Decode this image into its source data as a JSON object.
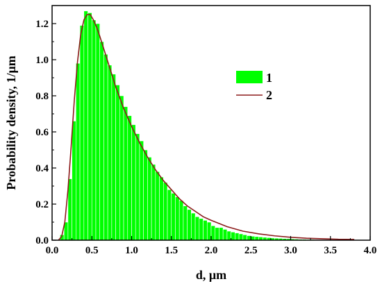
{
  "chart_data": {
    "type": "bar",
    "xlabel": "d, μm",
    "ylabel": "Probability density, 1/μm",
    "xlim": [
      0.0,
      4.0
    ],
    "ylim": [
      0.0,
      1.3
    ],
    "x_ticks": [
      "0.0",
      "0.5",
      "1.0",
      "1.5",
      "2.0",
      "2.5",
      "3.0",
      "3.5",
      "4.0"
    ],
    "y_ticks": [
      "0.0",
      "0.2",
      "0.4",
      "0.6",
      "0.8",
      "1.0",
      "1.2"
    ],
    "grid": false,
    "legend": {
      "position": "upper-right",
      "entries": [
        {
          "label": "1",
          "kind": "bar",
          "color": "#00ff00"
        },
        {
          "label": "2",
          "kind": "line",
          "color": "#8b1a1a"
        }
      ]
    },
    "series": [
      {
        "name": "1",
        "type": "bar",
        "color": "#00ff00",
        "bin_width": 0.05,
        "bins": [
          [
            0.1,
            0.03
          ],
          [
            0.15,
            0.1
          ],
          [
            0.2,
            0.34
          ],
          [
            0.25,
            0.66
          ],
          [
            0.3,
            0.98
          ],
          [
            0.35,
            1.19
          ],
          [
            0.4,
            1.27
          ],
          [
            0.45,
            1.26
          ],
          [
            0.5,
            1.22
          ],
          [
            0.55,
            1.2
          ],
          [
            0.6,
            1.1
          ],
          [
            0.65,
            1.03
          ],
          [
            0.7,
            0.97
          ],
          [
            0.75,
            0.92
          ],
          [
            0.8,
            0.86
          ],
          [
            0.85,
            0.8
          ],
          [
            0.9,
            0.74
          ],
          [
            0.95,
            0.69
          ],
          [
            1.0,
            0.64
          ],
          [
            1.05,
            0.59
          ],
          [
            1.1,
            0.55
          ],
          [
            1.15,
            0.5
          ],
          [
            1.2,
            0.46
          ],
          [
            1.25,
            0.42
          ],
          [
            1.3,
            0.38
          ],
          [
            1.35,
            0.35
          ],
          [
            1.4,
            0.32
          ],
          [
            1.45,
            0.28
          ],
          [
            1.5,
            0.26
          ],
          [
            1.55,
            0.24
          ],
          [
            1.6,
            0.22
          ],
          [
            1.65,
            0.19
          ],
          [
            1.7,
            0.17
          ],
          [
            1.75,
            0.15
          ],
          [
            1.8,
            0.13
          ],
          [
            1.85,
            0.12
          ],
          [
            1.9,
            0.11
          ],
          [
            1.95,
            0.1
          ],
          [
            2.0,
            0.08
          ],
          [
            2.05,
            0.07
          ],
          [
            2.1,
            0.07
          ],
          [
            2.15,
            0.06
          ],
          [
            2.2,
            0.05
          ],
          [
            2.25,
            0.045
          ],
          [
            2.3,
            0.04
          ],
          [
            2.35,
            0.035
          ],
          [
            2.4,
            0.03
          ],
          [
            2.45,
            0.025
          ],
          [
            2.5,
            0.022
          ],
          [
            2.55,
            0.02
          ],
          [
            2.6,
            0.018
          ],
          [
            2.65,
            0.016
          ],
          [
            2.7,
            0.014
          ],
          [
            2.75,
            0.012
          ],
          [
            2.8,
            0.011
          ],
          [
            2.85,
            0.01
          ],
          [
            2.9,
            0.009
          ],
          [
            2.95,
            0.008
          ],
          [
            3.0,
            0.007
          ],
          [
            3.05,
            0.006
          ],
          [
            3.1,
            0.005
          ],
          [
            3.15,
            0.005
          ],
          [
            3.2,
            0.004
          ],
          [
            3.25,
            0.004
          ],
          [
            3.3,
            0.003
          ],
          [
            3.35,
            0.003
          ],
          [
            3.4,
            0.002
          ],
          [
            3.45,
            0.002
          ],
          [
            3.5,
            0.002
          ],
          [
            3.55,
            0.002
          ],
          [
            3.6,
            0.001
          ],
          [
            3.65,
            0.001
          ],
          [
            3.7,
            0.001
          ],
          [
            3.75,
            0.001
          ]
        ]
      },
      {
        "name": "2",
        "type": "line",
        "color": "#8b1a1a",
        "points": [
          [
            0.08,
            0.0
          ],
          [
            0.12,
            0.02
          ],
          [
            0.16,
            0.1
          ],
          [
            0.2,
            0.28
          ],
          [
            0.24,
            0.52
          ],
          [
            0.28,
            0.78
          ],
          [
            0.32,
            0.99
          ],
          [
            0.36,
            1.14
          ],
          [
            0.4,
            1.22
          ],
          [
            0.44,
            1.25
          ],
          [
            0.48,
            1.25
          ],
          [
            0.52,
            1.22
          ],
          [
            0.56,
            1.18
          ],
          [
            0.6,
            1.13
          ],
          [
            0.65,
            1.06
          ],
          [
            0.7,
            0.99
          ],
          [
            0.75,
            0.92
          ],
          [
            0.8,
            0.85
          ],
          [
            0.9,
            0.73
          ],
          [
            1.0,
            0.63
          ],
          [
            1.1,
            0.54
          ],
          [
            1.2,
            0.46
          ],
          [
            1.3,
            0.39
          ],
          [
            1.4,
            0.33
          ],
          [
            1.5,
            0.28
          ],
          [
            1.6,
            0.23
          ],
          [
            1.7,
            0.19
          ],
          [
            1.8,
            0.16
          ],
          [
            1.9,
            0.13
          ],
          [
            2.0,
            0.11
          ],
          [
            2.2,
            0.075
          ],
          [
            2.4,
            0.05
          ],
          [
            2.6,
            0.035
          ],
          [
            2.8,
            0.024
          ],
          [
            3.0,
            0.016
          ],
          [
            3.2,
            0.011
          ],
          [
            3.4,
            0.008
          ],
          [
            3.6,
            0.005
          ],
          [
            3.8,
            0.004
          ]
        ]
      }
    ]
  }
}
